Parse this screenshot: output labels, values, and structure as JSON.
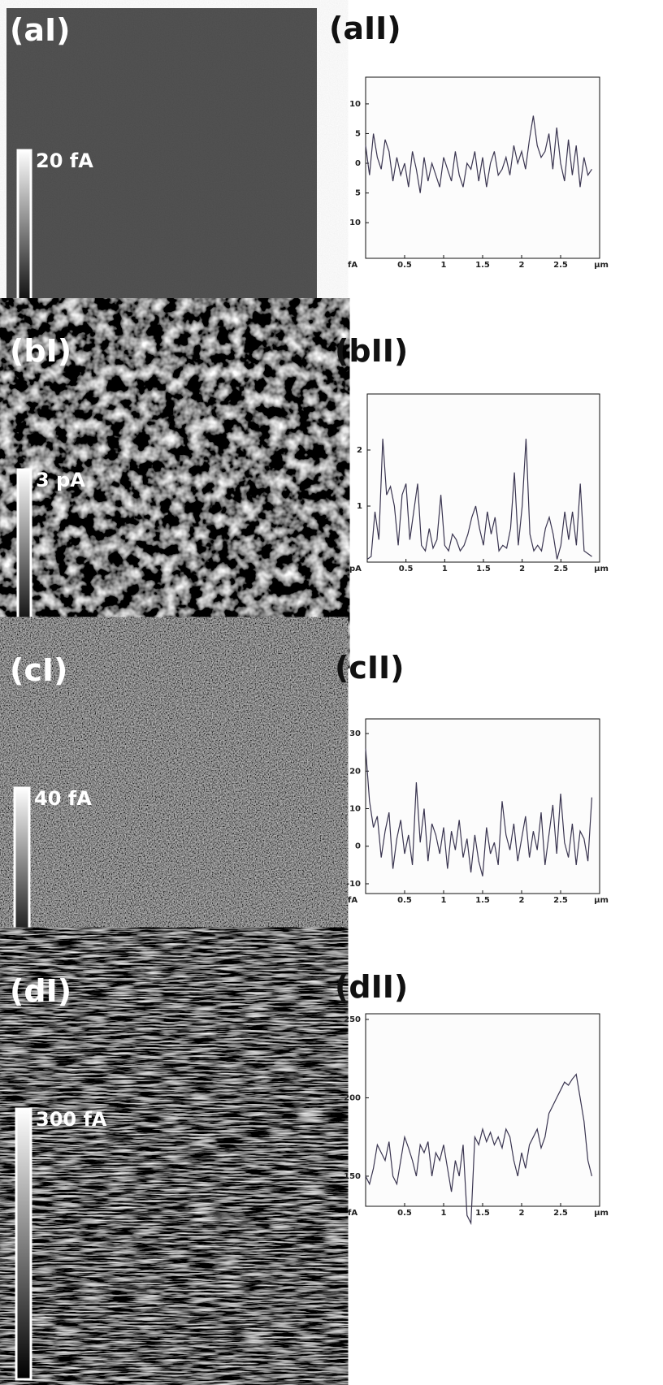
{
  "images": [
    {
      "label": "(aI)",
      "scale": "20 fA"
    },
    {
      "label": "(bI)",
      "scale": "3 pA"
    },
    {
      "label": "(cI)",
      "scale": "40 fA"
    },
    {
      "label": "(dI)",
      "scale": "300 fA"
    }
  ],
  "chart_data": [
    {
      "type": "line",
      "title": "(aII)",
      "x_label": "µm",
      "y_label": "fA",
      "color": "#3a3550",
      "xlim": [
        0,
        3
      ],
      "xticks": [
        0.5,
        1,
        1.5,
        2,
        2.5
      ],
      "ylim": [
        -16,
        14.5
      ],
      "yticks": [
        10,
        5,
        0,
        {
          "value": -5,
          "label": "5"
        },
        {
          "value": -10,
          "label": "10"
        }
      ],
      "x": [
        0,
        0.05,
        0.1,
        0.15,
        0.2,
        0.25,
        0.3,
        0.35,
        0.4,
        0.45,
        0.5,
        0.55,
        0.6,
        0.65,
        0.7,
        0.75,
        0.8,
        0.85,
        0.9,
        0.95,
        1,
        1.05,
        1.1,
        1.15,
        1.2,
        1.25,
        1.3,
        1.35,
        1.4,
        1.45,
        1.5,
        1.55,
        1.6,
        1.65,
        1.7,
        1.75,
        1.8,
        1.85,
        1.9,
        1.95,
        2,
        2.05,
        2.1,
        2.15,
        2.2,
        2.25,
        2.3,
        2.35,
        2.4,
        2.45,
        2.5,
        2.55,
        2.6,
        2.65,
        2.7,
        2.75,
        2.8,
        2.85,
        2.9
      ],
      "values": [
        3,
        -2,
        5,
        1,
        -1,
        4,
        2,
        -3,
        1,
        -2,
        0,
        -4,
        2,
        -1,
        -5,
        1,
        -3,
        0,
        -2,
        -4,
        1,
        -1,
        -3,
        2,
        -2,
        -4,
        0,
        -1,
        2,
        -3,
        1,
        -4,
        0,
        2,
        -2,
        -1,
        1,
        -2,
        3,
        0,
        2,
        -1,
        4,
        8,
        3,
        1,
        2,
        5,
        -1,
        6,
        0,
        -3,
        4,
        -2,
        3,
        -4,
        1,
        -2,
        -1
      ]
    },
    {
      "type": "line",
      "title": "(bII)",
      "x_label": "µm",
      "y_label": "pA",
      "color": "#3a3550",
      "xlim": [
        0,
        3
      ],
      "xticks": [
        0.5,
        1,
        1.5,
        2,
        2.5
      ],
      "ylim": [
        0,
        3
      ],
      "yticks": [
        1,
        2
      ],
      "x": [
        0,
        0.05,
        0.1,
        0.15,
        0.2,
        0.25,
        0.3,
        0.35,
        0.4,
        0.45,
        0.5,
        0.55,
        0.6,
        0.65,
        0.7,
        0.75,
        0.8,
        0.85,
        0.9,
        0.95,
        1,
        1.05,
        1.1,
        1.15,
        1.2,
        1.25,
        1.3,
        1.35,
        1.4,
        1.45,
        1.5,
        1.55,
        1.6,
        1.65,
        1.7,
        1.75,
        1.8,
        1.85,
        1.9,
        1.95,
        2,
        2.05,
        2.1,
        2.15,
        2.2,
        2.25,
        2.3,
        2.35,
        2.4,
        2.45,
        2.5,
        2.55,
        2.6,
        2.65,
        2.7,
        2.75,
        2.8,
        2.85,
        2.9
      ],
      "values": [
        0.05,
        0.1,
        0.9,
        0.4,
        2.2,
        1.2,
        1.35,
        1.0,
        0.3,
        1.2,
        1.4,
        0.4,
        0.9,
        1.4,
        0.3,
        0.2,
        0.6,
        0.25,
        0.4,
        1.2,
        0.3,
        0.2,
        0.5,
        0.4,
        0.2,
        0.3,
        0.5,
        0.8,
        1.0,
        0.6,
        0.3,
        0.9,
        0.5,
        0.8,
        0.2,
        0.3,
        0.25,
        0.6,
        1.6,
        0.3,
        1.0,
        2.2,
        0.5,
        0.2,
        0.3,
        0.2,
        0.6,
        0.8,
        0.5,
        0.05,
        0.3,
        0.9,
        0.4,
        0.9,
        0.3,
        1.4,
        0.2,
        0.15,
        0.1
      ]
    },
    {
      "type": "line",
      "title": "(cII)",
      "x_label": "µm",
      "y_label": "fA",
      "color": "#3a3550",
      "xlim": [
        0,
        3
      ],
      "xticks": [
        0.5,
        1,
        1.5,
        2,
        2.5
      ],
      "ylim": [
        -12.6,
        33.9
      ],
      "yticks": [
        30,
        20,
        10,
        0,
        -10
      ],
      "x": [
        0,
        0.05,
        0.1,
        0.15,
        0.2,
        0.25,
        0.3,
        0.35,
        0.4,
        0.45,
        0.5,
        0.55,
        0.6,
        0.65,
        0.7,
        0.75,
        0.8,
        0.85,
        0.9,
        0.95,
        1,
        1.05,
        1.1,
        1.15,
        1.2,
        1.25,
        1.3,
        1.35,
        1.4,
        1.45,
        1.5,
        1.55,
        1.6,
        1.65,
        1.7,
        1.75,
        1.8,
        1.85,
        1.9,
        1.95,
        2,
        2.05,
        2.1,
        2.15,
        2.2,
        2.25,
        2.3,
        2.35,
        2.4,
        2.45,
        2.5,
        2.55,
        2.6,
        2.65,
        2.7,
        2.75,
        2.8,
        2.85,
        2.9
      ],
      "values": [
        26,
        12,
        5,
        8,
        -3,
        4,
        9,
        -6,
        2,
        7,
        -2,
        3,
        -5,
        17,
        1,
        10,
        -4,
        6,
        3,
        -2,
        5,
        -6,
        4,
        -1,
        7,
        -3,
        2,
        -7,
        3,
        -4,
        -8,
        5,
        -2,
        1,
        -5,
        12,
        3,
        -1,
        6,
        -4,
        2,
        8,
        -3,
        4,
        -1,
        9,
        -5,
        3,
        11,
        -2,
        14,
        1,
        -3,
        6,
        -5,
        4,
        2,
        -4,
        13
      ]
    },
    {
      "type": "line",
      "title": "(dII)",
      "x_label": "µm",
      "y_label": "fA",
      "color": "#3a3550",
      "xlim": [
        0,
        3
      ],
      "xticks": [
        0.5,
        1,
        1.5,
        2,
        2.5
      ],
      "ylim": [
        130.8,
        253.6
      ],
      "yticks": [
        250,
        200,
        150
      ],
      "x": [
        0,
        0.05,
        0.1,
        0.15,
        0.2,
        0.25,
        0.3,
        0.35,
        0.4,
        0.45,
        0.5,
        0.55,
        0.6,
        0.65,
        0.7,
        0.75,
        0.8,
        0.85,
        0.9,
        0.95,
        1,
        1.05,
        1.1,
        1.15,
        1.2,
        1.25,
        1.3,
        1.35,
        1.4,
        1.45,
        1.5,
        1.55,
        1.6,
        1.65,
        1.7,
        1.75,
        1.8,
        1.85,
        1.9,
        1.95,
        2,
        2.05,
        2.1,
        2.15,
        2.2,
        2.25,
        2.3,
        2.35,
        2.4,
        2.45,
        2.5,
        2.55,
        2.6,
        2.65,
        2.7,
        2.75,
        2.8,
        2.85,
        2.9
      ],
      "values": [
        150,
        145,
        155,
        170,
        165,
        160,
        172,
        150,
        145,
        160,
        175,
        168,
        160,
        150,
        170,
        165,
        172,
        150,
        165,
        160,
        170,
        155,
        140,
        160,
        150,
        170,
        125,
        120,
        175,
        170,
        180,
        172,
        178,
        170,
        175,
        168,
        180,
        175,
        160,
        150,
        165,
        155,
        170,
        175,
        180,
        168,
        175,
        190,
        195,
        200,
        205,
        210,
        208,
        212,
        215,
        200,
        185,
        160,
        150
      ]
    }
  ]
}
